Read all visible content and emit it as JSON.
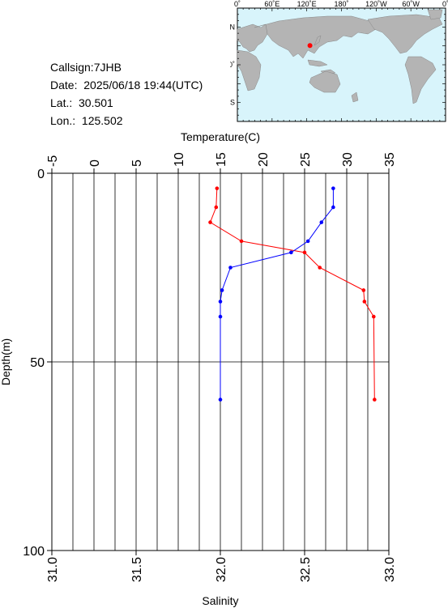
{
  "info": {
    "callsign": "Callsign:7JHB",
    "date": "Date:  2025/06/18 19:44(UTC)",
    "lat": "Lat.:  30.501",
    "lon": "Lon.:  125.502"
  },
  "map": {
    "lon_labels": [
      "0˚",
      "60˚E",
      "120˚E",
      "180˚",
      "120˚W",
      "60˚W",
      "0˚"
    ],
    "lat_labels": [
      "60˚N",
      "0˚",
      "60˚S"
    ],
    "station": {
      "lat": 30.501,
      "lon": 125.502
    },
    "colors": {
      "ocean": "#d8f4fb",
      "land": "#b4b4b4",
      "marker": "#ff0000"
    }
  },
  "chart_data": {
    "type": "line",
    "depth_axis": {
      "label": "Depth(m)",
      "lim": [
        0,
        100
      ],
      "ticks": [
        "0",
        "50",
        "100"
      ]
    },
    "temperature_axis": {
      "label": "Temperature(C)",
      "lim": [
        -5,
        35
      ],
      "ticks": [
        "-5",
        "0",
        "5",
        "10",
        "15",
        "20",
        "25",
        "30",
        "35"
      ]
    },
    "salinity_axis": {
      "label": "Salinity",
      "lim": [
        31.0,
        33.0
      ],
      "ticks": [
        "31.0",
        "31.5",
        "32.0",
        "32.5",
        "33.0"
      ]
    },
    "grid": true,
    "series": [
      {
        "quantity": "temperature",
        "color": "#ff0000",
        "depth": [
          4,
          9,
          13,
          18,
          21,
          25,
          31,
          34,
          38,
          60
        ],
        "values": [
          14.6,
          14.5,
          13.8,
          17.5,
          25.0,
          26.8,
          32.0,
          32.1,
          33.2,
          33.3
        ]
      },
      {
        "quantity": "salinity",
        "color": "#0000ff",
        "depth": [
          4,
          9,
          13,
          18,
          21,
          25,
          31,
          34,
          38,
          60
        ],
        "values": [
          32.67,
          32.67,
          32.6,
          32.52,
          32.42,
          32.06,
          32.01,
          32.0,
          32.0,
          32.0
        ]
      }
    ]
  }
}
